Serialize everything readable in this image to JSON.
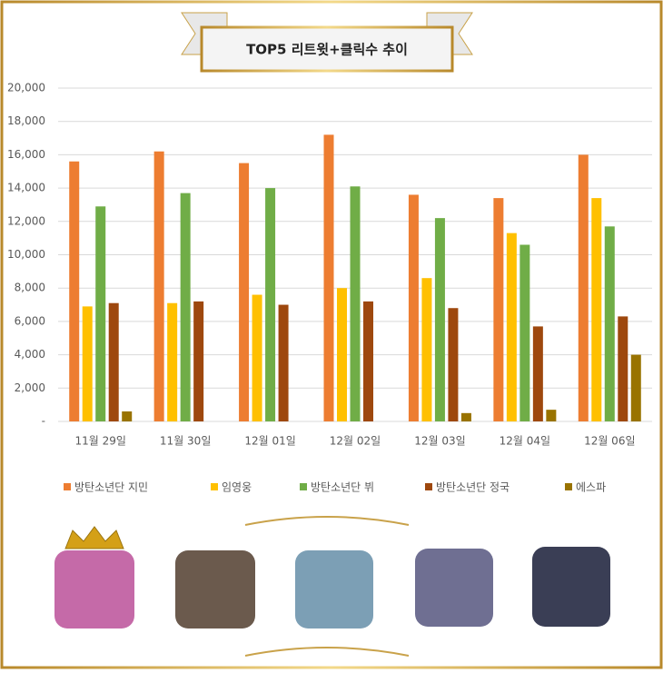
{
  "chart_data": {
    "type": "bar",
    "title": "TOP5 리트윗+클릭수 추이",
    "categories": [
      "11월 29일",
      "11월 30일",
      "12월 01일",
      "12월 02일",
      "12월 03일",
      "12월 04일",
      "12월 06일"
    ],
    "series": [
      {
        "name": "방탄소년단 지민",
        "color": "#ed7d31",
        "values": [
          15600,
          16200,
          15500,
          17200,
          13600,
          13400,
          16000
        ]
      },
      {
        "name": "임영웅",
        "color": "#ffc000",
        "values": [
          6900,
          7100,
          7600,
          8000,
          8600,
          11300,
          13400
        ]
      },
      {
        "name": "방탄소년단 뷔",
        "color": "#70ad47",
        "values": [
          12900,
          13700,
          14000,
          14100,
          12200,
          10600,
          11700
        ]
      },
      {
        "name": "방탄소년단 정국",
        "color": "#9e480e",
        "values": [
          7100,
          7200,
          7000,
          7200,
          6800,
          5700,
          6300
        ]
      },
      {
        "name": "에스파",
        "color": "#997300",
        "values": [
          600,
          null,
          null,
          null,
          500,
          700,
          4000
        ]
      }
    ],
    "ylim": [
      0,
      20000
    ],
    "yticks": [
      {
        "value": 0,
        "label": "-"
      },
      {
        "value": 2000,
        "label": "2,000"
      },
      {
        "value": 4000,
        "label": "4,000"
      },
      {
        "value": 6000,
        "label": "6,000"
      },
      {
        "value": 8000,
        "label": "8,000"
      },
      {
        "value": 10000,
        "label": "10,000"
      },
      {
        "value": 12000,
        "label": "12,000"
      },
      {
        "value": 14000,
        "label": "14,000"
      },
      {
        "value": 16000,
        "label": "16,000"
      },
      {
        "value": 18000,
        "label": "18,000"
      },
      {
        "value": 20000,
        "label": "20,000"
      }
    ],
    "grid": true
  }
}
